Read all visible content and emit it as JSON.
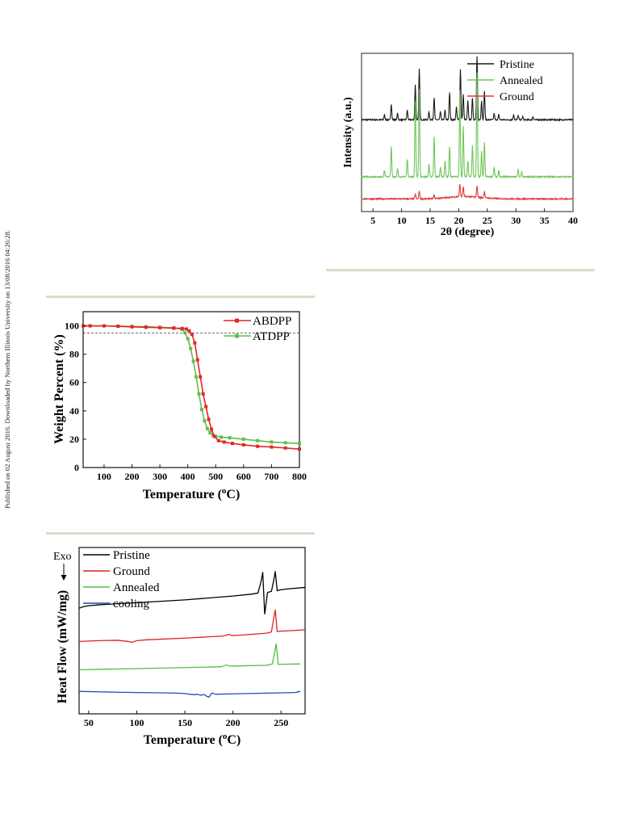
{
  "watermark": "Published on 02 August 2016. Downloaded by Northern Illinois University on 13/08/2016 04:26:28.",
  "figures": {
    "xrd": {
      "xlabel": "2θ (degree)",
      "ylabel": "Intensity (a.u.)",
      "legend": [
        "Pristine",
        "Annealed",
        "Ground"
      ],
      "colors": [
        "#1a1a1a",
        "#6ec65a",
        "#e03a3a"
      ]
    },
    "tga": {
      "xlabel": "Temperature (",
      "xlabel_sup": "o",
      "xlabel_tail": "C)",
      "ylabel": "Weight Percent (%)",
      "legend": [
        "ABDPP",
        "ATDPP"
      ],
      "colors": [
        "#e32626",
        "#5fbf4c"
      ]
    },
    "dsc": {
      "xlabel": "Temperature (",
      "xlabel_sup": "o",
      "xlabel_tail": "C)",
      "ylabel": "Heat Flow (mW/mg)",
      "exo_label": "Exo",
      "legend": [
        "Pristine",
        "Ground",
        "Annealed",
        "cooling"
      ],
      "colors": [
        "#000000",
        "#e02020",
        "#4fc040",
        "#2448b8"
      ]
    }
  },
  "chart_data": [
    {
      "type": "line",
      "xlabel": "2θ (degree)",
      "ylabel": "Intensity (a.u.)",
      "xlim": [
        3,
        40
      ],
      "xticks": [
        5,
        10,
        15,
        20,
        25,
        30,
        35,
        40
      ],
      "legend_position": "top-right",
      "series": [
        {
          "name": "Pristine",
          "baseline": 0.58,
          "peaks": [
            [
              7.0,
              0.03
            ],
            [
              8.2,
              0.1
            ],
            [
              9.3,
              0.04
            ],
            [
              11.0,
              0.06
            ],
            [
              12.4,
              0.22
            ],
            [
              13.1,
              0.32
            ],
            [
              14.8,
              0.05
            ],
            [
              15.7,
              0.14
            ],
            [
              16.8,
              0.05
            ],
            [
              17.6,
              0.06
            ],
            [
              18.4,
              0.17
            ],
            [
              19.6,
              0.08
            ],
            [
              20.3,
              0.32
            ],
            [
              20.8,
              0.16
            ],
            [
              21.6,
              0.12
            ],
            [
              22.4,
              0.14
            ],
            [
              23.2,
              0.4
            ],
            [
              24.0,
              0.12
            ],
            [
              24.5,
              0.18
            ],
            [
              26.2,
              0.04
            ],
            [
              27.0,
              0.03
            ],
            [
              29.6,
              0.03
            ],
            [
              30.4,
              0.03
            ],
            [
              31.2,
              0.02
            ],
            [
              33.0,
              0.02
            ]
          ]
        },
        {
          "name": "Annealed",
          "baseline": 0.22,
          "peaks": [
            [
              7.0,
              0.04
            ],
            [
              8.2,
              0.19
            ],
            [
              9.3,
              0.05
            ],
            [
              11.0,
              0.11
            ],
            [
              12.4,
              0.48
            ],
            [
              13.1,
              0.55
            ],
            [
              14.8,
              0.08
            ],
            [
              15.7,
              0.25
            ],
            [
              16.8,
              0.06
            ],
            [
              17.6,
              0.1
            ],
            [
              18.4,
              0.19
            ],
            [
              20.2,
              0.55
            ],
            [
              20.8,
              0.32
            ],
            [
              21.6,
              0.1
            ],
            [
              22.4,
              0.2
            ],
            [
              23.2,
              0.66
            ],
            [
              24.0,
              0.16
            ],
            [
              24.5,
              0.22
            ],
            [
              26.2,
              0.06
            ],
            [
              27.0,
              0.04
            ],
            [
              30.4,
              0.05
            ],
            [
              31.0,
              0.03
            ]
          ]
        },
        {
          "name": "Ground",
          "baseline": 0.08,
          "peaks": [
            [
              12.4,
              0.03
            ],
            [
              13.1,
              0.05
            ],
            [
              15.7,
              0.02
            ],
            [
              20.2,
              0.08
            ],
            [
              20.8,
              0.06
            ],
            [
              23.2,
              0.07
            ],
            [
              24.5,
              0.04
            ]
          ]
        }
      ]
    },
    {
      "type": "line",
      "xlabel": "Temperature (oC)",
      "ylabel": "Weight Percent (%)",
      "xlim": [
        25,
        800
      ],
      "ylim": [
        0,
        110
      ],
      "xticks": [
        100,
        200,
        300,
        400,
        500,
        600,
        700,
        800
      ],
      "yticks": [
        0,
        20,
        40,
        60,
        80,
        100
      ],
      "reference_line_y": 95,
      "legend_position": "top-right",
      "series": [
        {
          "name": "ABDPP",
          "x": [
            25,
            50,
            100,
            150,
            200,
            250,
            300,
            350,
            380,
            395,
            405,
            415,
            425,
            435,
            445,
            455,
            465,
            475,
            485,
            495,
            510,
            530,
            560,
            600,
            650,
            700,
            750,
            800
          ],
          "y": [
            100,
            100,
            100,
            99.7,
            99.3,
            99,
            98.7,
            98.4,
            98.2,
            97.8,
            96.5,
            94,
            88,
            76,
            64,
            52,
            43,
            34,
            27,
            22,
            19,
            18,
            17,
            16,
            15,
            14.5,
            13.8,
            13
          ]
        },
        {
          "name": "ATDPP",
          "x": [
            25,
            50,
            100,
            150,
            200,
            250,
            300,
            350,
            380,
            390,
            400,
            410,
            420,
            430,
            440,
            450,
            460,
            470,
            480,
            490,
            500,
            520,
            550,
            600,
            650,
            700,
            750,
            800
          ],
          "y": [
            100,
            100,
            100,
            99.8,
            99.6,
            99.4,
            99,
            98.6,
            97.5,
            95,
            91,
            84,
            75,
            64,
            52,
            41,
            33,
            27.5,
            24.5,
            23,
            22,
            21.5,
            21,
            20,
            19,
            18,
            17.5,
            17
          ]
        }
      ]
    },
    {
      "type": "line",
      "xlabel": "Temperature (oC)",
      "ylabel": "Heat Flow (mW/mg)",
      "xlim": [
        40,
        275
      ],
      "xticks": [
        50,
        100,
        150,
        200,
        250
      ],
      "legend_position": "top-left",
      "series": [
        {
          "name": "Pristine",
          "x": [
            40,
            45,
            50,
            60,
            80,
            100,
            150,
            200,
            220,
            226,
            229,
            231,
            233,
            236,
            240,
            242,
            244,
            246,
            249,
            255,
            275
          ],
          "y": [
            0.635,
            0.645,
            0.65,
            0.655,
            0.662,
            0.668,
            0.685,
            0.708,
            0.72,
            0.726,
            0.79,
            0.85,
            0.6,
            0.73,
            0.736,
            0.79,
            0.855,
            0.74,
            0.745,
            0.75,
            0.76
          ]
        },
        {
          "name": "Ground",
          "x": [
            40,
            60,
            80,
            90,
            95,
            100,
            110,
            150,
            190,
            196,
            199,
            203,
            210,
            235,
            240,
            242,
            244,
            246,
            250,
            275
          ],
          "y": [
            0.435,
            0.44,
            0.442,
            0.436,
            0.43,
            0.44,
            0.445,
            0.455,
            0.468,
            0.478,
            0.47,
            0.472,
            0.474,
            0.485,
            0.492,
            0.56,
            0.625,
            0.495,
            0.497,
            0.505
          ]
        },
        {
          "name": "Annealed",
          "x": [
            40,
            100,
            150,
            188,
            193,
            197,
            205,
            235,
            241,
            243,
            245,
            247,
            250,
            270
          ],
          "y": [
            0.265,
            0.272,
            0.278,
            0.283,
            0.294,
            0.287,
            0.288,
            0.292,
            0.3,
            0.36,
            0.42,
            0.298,
            0.298,
            0.3
          ]
        },
        {
          "name": "cooling",
          "x": [
            40,
            80,
            100,
            140,
            150,
            155,
            160,
            163,
            166,
            170,
            173,
            175,
            178,
            182,
            200,
            240,
            265,
            270
          ],
          "y": [
            0.135,
            0.13,
            0.128,
            0.125,
            0.122,
            0.118,
            0.115,
            0.118,
            0.112,
            0.116,
            0.105,
            0.1,
            0.125,
            0.118,
            0.12,
            0.125,
            0.128,
            0.135
          ]
        }
      ]
    }
  ]
}
